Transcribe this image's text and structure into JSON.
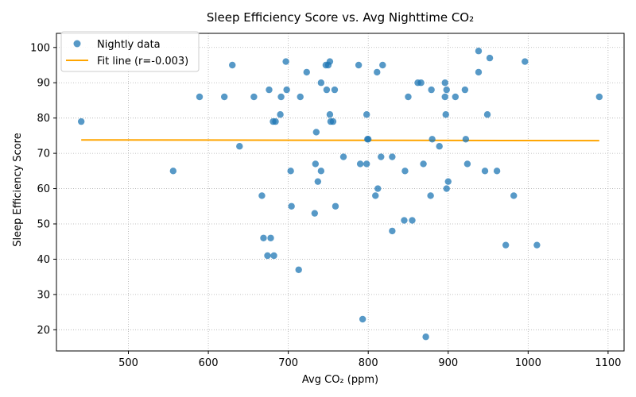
{
  "chart_data": {
    "type": "scatter",
    "title": "Sleep Efficiency Score vs. Avg Nighttime CO₂",
    "xlabel": "Avg CO₂ (ppm)",
    "ylabel": "Sleep Efficiency Score",
    "xlim": [
      410,
      1120
    ],
    "ylim": [
      14,
      104
    ],
    "xticks": [
      500,
      600,
      700,
      800,
      900,
      1000,
      1100
    ],
    "yticks": [
      20,
      30,
      40,
      50,
      60,
      70,
      80,
      90,
      100
    ],
    "grid": true,
    "legend_position": "upper-left",
    "series": [
      {
        "name": "Nightly data",
        "kind": "scatter",
        "color": "#1f77b4",
        "points": [
          [
            441,
            79
          ],
          [
            556,
            65
          ],
          [
            589,
            86
          ],
          [
            620,
            86
          ],
          [
            630,
            95
          ],
          [
            639,
            72
          ],
          [
            657,
            86
          ],
          [
            667,
            58
          ],
          [
            669,
            46
          ],
          [
            674,
            41
          ],
          [
            676,
            88
          ],
          [
            678,
            46
          ],
          [
            681,
            79
          ],
          [
            682,
            41
          ],
          [
            684,
            79
          ],
          [
            690,
            81
          ],
          [
            691,
            86
          ],
          [
            697,
            96
          ],
          [
            698,
            88
          ],
          [
            703,
            65
          ],
          [
            704,
            55
          ],
          [
            713,
            37
          ],
          [
            715,
            86
          ],
          [
            723,
            93
          ],
          [
            733,
            53
          ],
          [
            734,
            67
          ],
          [
            735,
            76
          ],
          [
            737,
            62
          ],
          [
            741,
            65
          ],
          [
            741,
            90
          ],
          [
            747,
            95
          ],
          [
            748,
            88
          ],
          [
            750,
            95
          ],
          [
            752,
            81
          ],
          [
            752,
            96
          ],
          [
            753,
            79
          ],
          [
            756,
            79
          ],
          [
            758,
            88
          ],
          [
            759,
            55
          ],
          [
            769,
            69
          ],
          [
            788,
            95
          ],
          [
            790,
            67
          ],
          [
            793,
            23
          ],
          [
            798,
            67
          ],
          [
            798,
            81
          ],
          [
            799,
            74
          ],
          [
            800,
            74
          ],
          [
            809,
            58
          ],
          [
            811,
            93
          ],
          [
            812,
            60
          ],
          [
            816,
            69
          ],
          [
            818,
            95
          ],
          [
            830,
            69
          ],
          [
            830,
            48
          ],
          [
            845,
            51
          ],
          [
            846,
            65
          ],
          [
            850,
            86
          ],
          [
            855,
            51
          ],
          [
            862,
            90
          ],
          [
            866,
            90
          ],
          [
            869,
            67
          ],
          [
            872,
            18
          ],
          [
            878,
            58
          ],
          [
            879,
            88
          ],
          [
            880,
            74
          ],
          [
            889,
            72
          ],
          [
            896,
            90
          ],
          [
            896,
            86
          ],
          [
            897,
            81
          ],
          [
            898,
            88
          ],
          [
            898,
            60
          ],
          [
            900,
            62
          ],
          [
            909,
            86
          ],
          [
            921,
            88
          ],
          [
            922,
            74
          ],
          [
            924,
            67
          ],
          [
            938,
            99
          ],
          [
            938,
            93
          ],
          [
            946,
            65
          ],
          [
            949,
            81
          ],
          [
            952,
            97
          ],
          [
            961,
            65
          ],
          [
            972,
            44
          ],
          [
            982,
            58
          ],
          [
            996,
            96
          ],
          [
            1011,
            44
          ],
          [
            1089,
            86
          ]
        ]
      },
      {
        "name": "Fit line (r=-0.003)",
        "kind": "line",
        "color": "#ffa500",
        "x": [
          441,
          1089
        ],
        "y": [
          73.8,
          73.6
        ]
      }
    ]
  }
}
